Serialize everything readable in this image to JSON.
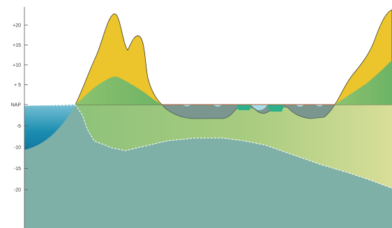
{
  "axis": {
    "ticks": [
      {
        "label": "+20",
        "value": 20
      },
      {
        "label": "+15",
        "value": 15
      },
      {
        "label": "+10",
        "value": 10
      },
      {
        "label": "+ 5",
        "value": 5
      },
      {
        "label": "NAP",
        "value": 0
      },
      {
        "label": "-5",
        "value": -5
      },
      {
        "label": "-10",
        "value": -10
      },
      {
        "label": "-15",
        "value": -15
      },
      {
        "label": "-20",
        "value": -20
      }
    ]
  },
  "colors": {
    "sea_deep": "#1589ad",
    "sea_light": "#7dc2d6",
    "subsoil": "#7fb0a8",
    "dune_sand": "#ecc42c",
    "dune_core": "#7fbd6a",
    "peat_gray": "#7b968f",
    "marsh_green": "#2db08a",
    "pond": "#a8dcea",
    "gradient_light": "#d2dc96"
  }
}
